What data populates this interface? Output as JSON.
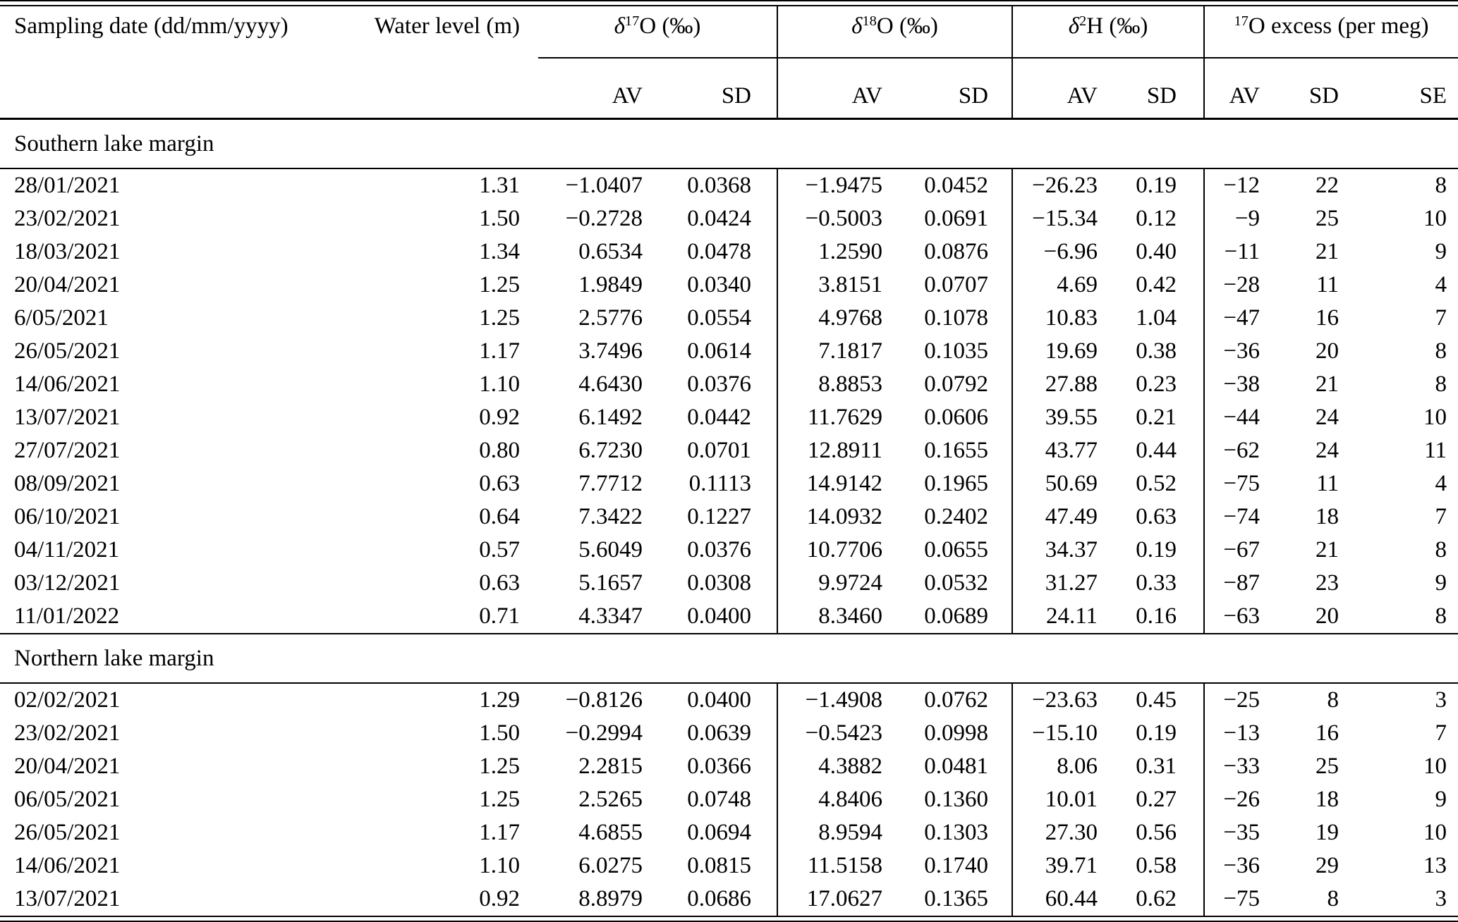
{
  "meta": {
    "background": "#ffffff",
    "ink": "#000000",
    "description": "Scientific paper data table of lake water isotope measurements"
  },
  "table": {
    "header": {
      "col_date": "Sampling date (dd/mm/yyyy)",
      "col_water": "Water level (m)",
      "groups": [
        {
          "symbol": "δ",
          "sup": "17",
          "rest": "O (‰)"
        },
        {
          "symbol": "δ",
          "sup": "18",
          "rest": "O (‰)"
        },
        {
          "symbol": "δ",
          "sup": "2",
          "rest": "H (‰)"
        },
        {
          "symbol": "",
          "sup": "17",
          "rest": "O excess (per meg)"
        }
      ],
      "sub": [
        "AV",
        "SD",
        "AV",
        "SD",
        "AV",
        "SD",
        "AV",
        "SD",
        "SE"
      ]
    },
    "sections": [
      {
        "title": "Southern lake margin",
        "rows": [
          [
            "28/01/2021",
            "1.31",
            "−1.0407",
            "0.0368",
            "−1.9475",
            "0.0452",
            "−26.23",
            "0.19",
            "−12",
            "22",
            "8"
          ],
          [
            "23/02/2021",
            "1.50",
            "−0.2728",
            "0.0424",
            "−0.5003",
            "0.0691",
            "−15.34",
            "0.12",
            "−9",
            "25",
            "10"
          ],
          [
            "18/03/2021",
            "1.34",
            "0.6534",
            "0.0478",
            "1.2590",
            "0.0876",
            "−6.96",
            "0.40",
            "−11",
            "21",
            "9"
          ],
          [
            "20/04/2021",
            "1.25",
            "1.9849",
            "0.0340",
            "3.8151",
            "0.0707",
            "4.69",
            "0.42",
            "−28",
            "11",
            "4"
          ],
          [
            "6/05/2021",
            "1.25",
            "2.5776",
            "0.0554",
            "4.9768",
            "0.1078",
            "10.83",
            "1.04",
            "−47",
            "16",
            "7"
          ],
          [
            "26/05/2021",
            "1.17",
            "3.7496",
            "0.0614",
            "7.1817",
            "0.1035",
            "19.69",
            "0.38",
            "−36",
            "20",
            "8"
          ],
          [
            "14/06/2021",
            "1.10",
            "4.6430",
            "0.0376",
            "8.8853",
            "0.0792",
            "27.88",
            "0.23",
            "−38",
            "21",
            "8"
          ],
          [
            "13/07/2021",
            "0.92",
            "6.1492",
            "0.0442",
            "11.7629",
            "0.0606",
            "39.55",
            "0.21",
            "−44",
            "24",
            "10"
          ],
          [
            "27/07/2021",
            "0.80",
            "6.7230",
            "0.0701",
            "12.8911",
            "0.1655",
            "43.77",
            "0.44",
            "−62",
            "24",
            "11"
          ],
          [
            "08/09/2021",
            "0.63",
            "7.7712",
            "0.1113",
            "14.9142",
            "0.1965",
            "50.69",
            "0.52",
            "−75",
            "11",
            "4"
          ],
          [
            "06/10/2021",
            "0.64",
            "7.3422",
            "0.1227",
            "14.0932",
            "0.2402",
            "47.49",
            "0.63",
            "−74",
            "18",
            "7"
          ],
          [
            "04/11/2021",
            "0.57",
            "5.6049",
            "0.0376",
            "10.7706",
            "0.0655",
            "34.37",
            "0.19",
            "−67",
            "21",
            "8"
          ],
          [
            "03/12/2021",
            "0.63",
            "5.1657",
            "0.0308",
            "9.9724",
            "0.0532",
            "31.27",
            "0.33",
            "−87",
            "23",
            "9"
          ],
          [
            "11/01/2022",
            "0.71",
            "4.3347",
            "0.0400",
            "8.3460",
            "0.0689",
            "24.11",
            "0.16",
            "−63",
            "20",
            "8"
          ]
        ]
      },
      {
        "title": "Northern lake margin",
        "rows": [
          [
            "02/02/2021",
            "1.29",
            "−0.8126",
            "0.0400",
            "−1.4908",
            "0.0762",
            "−23.63",
            "0.45",
            "−25",
            "8",
            "3"
          ],
          [
            "23/02/2021",
            "1.50",
            "−0.2994",
            "0.0639",
            "−0.5423",
            "0.0998",
            "−15.10",
            "0.19",
            "−13",
            "16",
            "7"
          ],
          [
            "20/04/2021",
            "1.25",
            "2.2815",
            "0.0366",
            "4.3882",
            "0.0481",
            "8.06",
            "0.31",
            "−33",
            "25",
            "10"
          ],
          [
            "06/05/2021",
            "1.25",
            "2.5265",
            "0.0748",
            "4.8406",
            "0.1360",
            "10.01",
            "0.27",
            "−26",
            "18",
            "9"
          ],
          [
            "26/05/2021",
            "1.17",
            "4.6855",
            "0.0694",
            "8.9594",
            "0.1303",
            "27.30",
            "0.56",
            "−35",
            "19",
            "10"
          ],
          [
            "14/06/2021",
            "1.10",
            "6.0275",
            "0.0815",
            "11.5158",
            "0.1740",
            "39.71",
            "0.58",
            "−36",
            "29",
            "13"
          ],
          [
            "13/07/2021",
            "0.92",
            "8.8979",
            "0.0686",
            "17.0627",
            "0.1365",
            "60.44",
            "0.62",
            "−75",
            "8",
            "3"
          ]
        ]
      }
    ]
  }
}
